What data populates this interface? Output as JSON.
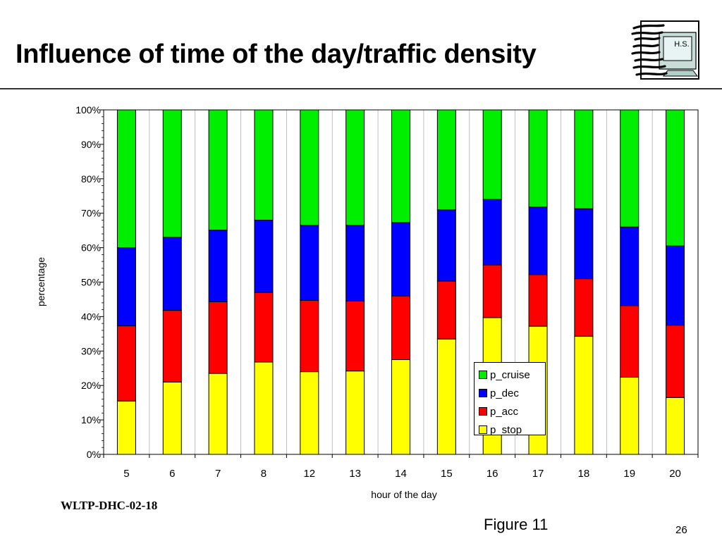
{
  "slide": {
    "title": "Influence of time of the day/traffic density",
    "footer_id": "WLTP-DHC-02-18",
    "figure_label": "Figure 11",
    "page_number": "26",
    "logo_text": "H.S."
  },
  "chart_data": {
    "type": "bar",
    "stacked": true,
    "normalized": true,
    "categories": [
      "5",
      "6",
      "7",
      "8",
      "12",
      "13",
      "14",
      "15",
      "16",
      "17",
      "18",
      "19",
      "20"
    ],
    "series": [
      {
        "name": "p_stop",
        "color": "#ffff00",
        "values": [
          15.5,
          21.0,
          23.5,
          26.8,
          24.0,
          24.2,
          27.5,
          33.5,
          39.7,
          37.2,
          34.3,
          22.4,
          16.5
        ]
      },
      {
        "name": "p_acc",
        "color": "#ff0000",
        "values": [
          21.8,
          20.8,
          20.8,
          20.2,
          20.7,
          20.3,
          18.5,
          16.8,
          15.3,
          15.0,
          16.7,
          20.8,
          21.0
        ]
      },
      {
        "name": "p_dec",
        "color": "#0000ff",
        "values": [
          22.7,
          21.2,
          20.8,
          21.0,
          21.8,
          22.0,
          21.3,
          20.7,
          19.0,
          19.6,
          20.3,
          22.8,
          23.0
        ]
      },
      {
        "name": "p_cruise",
        "color": "#00ee00",
        "values": [
          40.0,
          37.0,
          34.9,
          32.0,
          33.5,
          33.5,
          32.7,
          29.0,
          26.0,
          28.2,
          28.7,
          34.0,
          39.5
        ]
      }
    ],
    "legend_order": [
      "p_cruise",
      "p_dec",
      "p_acc",
      "p_stop"
    ],
    "xlabel": "hour of the day",
    "ylabel": "percentage",
    "ylim": [
      0,
      100
    ],
    "yticks": [
      "0%",
      "10%",
      "20%",
      "30%",
      "40%",
      "50%",
      "60%",
      "70%",
      "80%",
      "90%",
      "100%"
    ],
    "grid": {
      "vertical_lines": true,
      "horizontal_lines": false
    },
    "legend_position": "bottom-right"
  }
}
